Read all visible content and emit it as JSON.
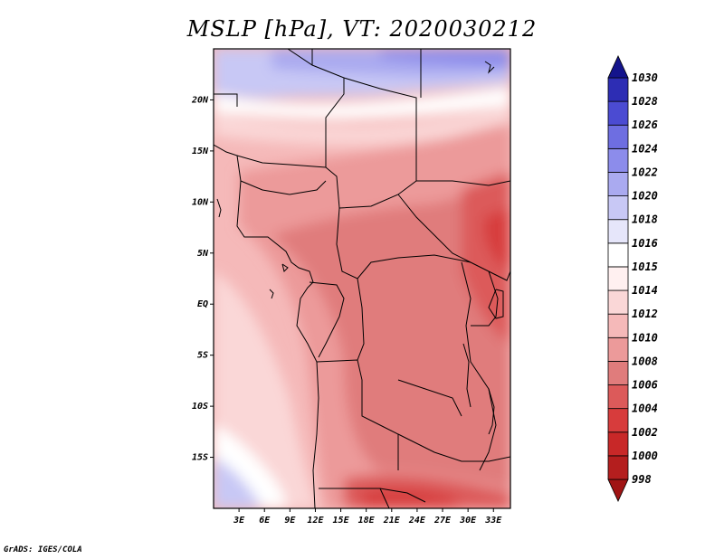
{
  "title": "MSLP [hPa], VT: 2020030212",
  "credit": "GrADS: IGES/COLA",
  "lat_labels": [
    "20N",
    "15N",
    "10N",
    "5N",
    "EQ",
    "5S",
    "10S",
    "15S"
  ],
  "lon_labels": [
    "3E",
    "6E",
    "9E",
    "12E",
    "15E",
    "18E",
    "21E",
    "24E",
    "27E",
    "30E",
    "33E"
  ],
  "colorbar": {
    "levels": [
      "998",
      "1000",
      "1002",
      "1004",
      "1006",
      "1008",
      "1010",
      "1012",
      "1014",
      "1015",
      "1016",
      "1018",
      "1020",
      "1022",
      "1024",
      "1026",
      "1028",
      "1030"
    ],
    "colors": [
      "#a01414",
      "#b41e1e",
      "#c82828",
      "#d73c3c",
      "#dc5a5a",
      "#e07c7c",
      "#ec9a9a",
      "#f5b9b9",
      "#fad7d7",
      "#fff0f0",
      "#ffffff",
      "#e6e6fa",
      "#c8c8f5",
      "#aaaaf0",
      "#8c8ceb",
      "#6e6ee1",
      "#4b4bd2",
      "#2d2db4",
      "#14148c"
    ]
  },
  "chart_data": {
    "type": "heatmap",
    "title": "MSLP [hPa], VT: 2020030212",
    "variable": "Mean sea level pressure",
    "units": "hPa",
    "valid_time": "2020030212",
    "lon_range": [
      0,
      35
    ],
    "lat_range": [
      -20,
      25
    ],
    "x_ticks": [
      "3E",
      "6E",
      "9E",
      "12E",
      "15E",
      "18E",
      "21E",
      "24E",
      "27E",
      "30E",
      "33E"
    ],
    "y_ticks": [
      "20N",
      "15N",
      "10N",
      "5N",
      "EQ",
      "5S",
      "10S",
      "15S"
    ],
    "contour_levels": [
      998,
      1000,
      1002,
      1004,
      1006,
      1008,
      1010,
      1012,
      1014,
      1015,
      1016,
      1018,
      1020,
      1022,
      1024,
      1026,
      1028,
      1030
    ]
  }
}
